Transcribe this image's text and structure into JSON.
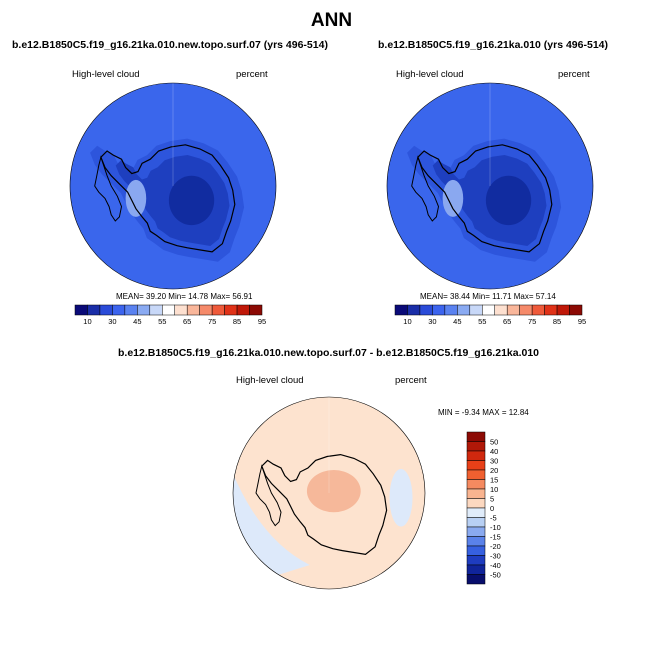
{
  "title": "ANN",
  "panels": [
    {
      "title": "b.e12.B1850C5.f19_g16.21ka.010.new.topo.surf.07 (yrs 496-514)",
      "variable": "High-level cloud",
      "units": "percent",
      "stats": {
        "mean_label": "MEAN=",
        "mean": "39.20",
        "min_label": "Min=",
        "min": "14.78",
        "max_label": "Max=",
        "max": "56.91"
      },
      "colorbar": {
        "ticks": [
          "10",
          "30",
          "45",
          "55",
          "65",
          "75",
          "85",
          "95"
        ],
        "colors": [
          "#0a0a78",
          "#1a2ea8",
          "#2a4bd8",
          "#3c64ee",
          "#5a82f0",
          "#8aaaf2",
          "#c8d8f8",
          "#ffffff",
          "#fde0d0",
          "#f9b69a",
          "#f58a6a",
          "#ef5a3a",
          "#e03218",
          "#c01808",
          "#8c0a04"
        ]
      }
    },
    {
      "title": "b.e12.B1850C5.f19_g16.21ka.010 (yrs 496-514)",
      "variable": "High-level cloud",
      "units": "percent",
      "stats": {
        "mean_label": "MEAN=",
        "mean": "38.44",
        "min_label": "Min=",
        "min": "11.71",
        "max_label": "Max=",
        "max": "57.14"
      },
      "colorbar": {
        "ticks": [
          "10",
          "30",
          "45",
          "55",
          "65",
          "75",
          "85",
          "95"
        ],
        "colors": [
          "#0a0a78",
          "#1a2ea8",
          "#2a4bd8",
          "#3c64ee",
          "#5a82f0",
          "#8aaaf2",
          "#c8d8f8",
          "#ffffff",
          "#fde0d0",
          "#f9b69a",
          "#f58a6a",
          "#ef5a3a",
          "#e03218",
          "#c01808",
          "#8c0a04"
        ]
      }
    }
  ],
  "diff_panel": {
    "title": "b.e12.B1850C5.f19_g16.21ka.010.new.topo.surf.07 - b.e12.B1850C5.f19_g16.21ka.010",
    "variable": "High-level cloud",
    "units": "percent",
    "stats": {
      "min_label": "MIN =",
      "min": "-9.34",
      "max_label": "MAX =",
      "max": "12.84"
    },
    "colorbar": {
      "ticks": [
        "50",
        "40",
        "30",
        "20",
        "15",
        "10",
        "5",
        "0",
        "-5",
        "-10",
        "-15",
        "-20",
        "-30",
        "-40",
        "-50"
      ],
      "colors": [
        "#8c0a04",
        "#b01808",
        "#d0280e",
        "#e84018",
        "#f06030",
        "#f58a60",
        "#f9b490",
        "#fcd8c0",
        "#e0ecfa",
        "#b8d0f4",
        "#8aaaf0",
        "#5a82ea",
        "#3660e0",
        "#1e3cc0",
        "#10249a",
        "#080e6c"
      ]
    }
  },
  "map_colors": {
    "ocean": "#3a66ec",
    "land_outer": "#2d55dc",
    "land_mid": "#1e3fbf",
    "land_deep": "#112ca0",
    "land_light": "#8aa8f0",
    "coast": "#000000",
    "diff_ocean": "#fde3cf",
    "diff_light": "#dde9fa",
    "diff_pos": "#f6b89a"
  }
}
